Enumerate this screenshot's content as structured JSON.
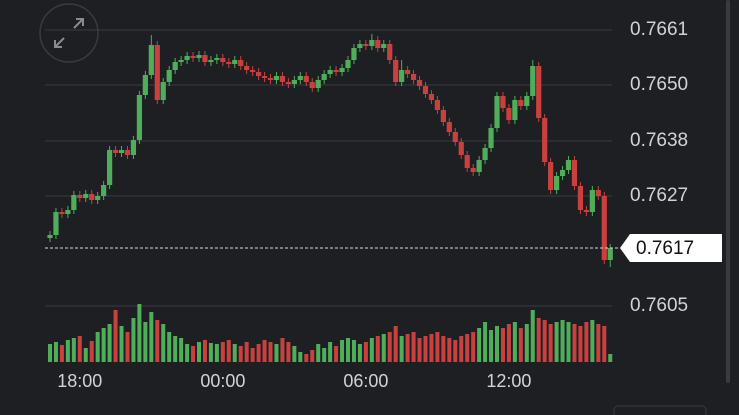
{
  "chart_data": {
    "type": "candlestick",
    "categories": [
      null,
      null,
      null,
      null,
      null,
      "18:00",
      null,
      null,
      null,
      null,
      null,
      null,
      null,
      null,
      null,
      null,
      null,
      null,
      null,
      null,
      null,
      null,
      null,
      null,
      null,
      null,
      null,
      null,
      null,
      "00:00",
      null,
      null,
      null,
      null,
      null,
      null,
      null,
      null,
      null,
      null,
      null,
      null,
      null,
      null,
      null,
      null,
      null,
      null,
      null,
      null,
      null,
      null,
      null,
      "06:00",
      null,
      null,
      null,
      null,
      null,
      null,
      null,
      null,
      null,
      null,
      null,
      null,
      null,
      null,
      null,
      null,
      null,
      null,
      null,
      null,
      null,
      null,
      null,
      "12:00",
      null,
      null,
      null,
      null,
      null,
      null,
      null,
      null,
      null,
      null,
      null,
      null,
      null,
      null,
      null,
      null,
      null
    ],
    "open": [
      0.7619,
      0.76196,
      0.76242,
      0.76238,
      0.76246,
      0.76276,
      0.7627,
      0.76278,
      0.76266,
      0.76274,
      0.76296,
      0.76366,
      0.7636,
      0.76366,
      0.76356,
      0.76386,
      0.76476,
      0.76516,
      0.76576,
      0.76466,
      0.76502,
      0.76526,
      0.76542,
      0.76546,
      0.76554,
      0.7655,
      0.76556,
      0.76542,
      0.76546,
      0.7655,
      0.76542,
      0.76538,
      0.76546,
      0.76534,
      0.76526,
      0.76522,
      0.76514,
      0.7651,
      0.76506,
      0.76514,
      0.76502,
      0.76498,
      0.76506,
      0.76514,
      0.76502,
      0.7649,
      0.76506,
      0.76518,
      0.76526,
      0.76522,
      0.7653,
      0.76546,
      0.7657,
      0.76578,
      0.76574,
      0.76586,
      0.7657,
      0.76578,
      0.76546,
      0.76502,
      0.76526,
      0.76518,
      0.76506,
      0.76494,
      0.76478,
      0.76466,
      0.76446,
      0.76422,
      0.76402,
      0.76382,
      0.76356,
      0.7633,
      0.76322,
      0.76346,
      0.7637,
      0.7641,
      0.76474,
      0.7645,
      0.76426,
      0.76466,
      0.76454,
      0.76474,
      0.76534,
      0.7643,
      0.76342,
      0.76286,
      0.76314,
      0.76326,
      0.76346,
      0.76294,
      0.76246,
      0.76242,
      0.76286,
      0.76274,
      0.76146
    ],
    "high": [
      0.76204,
      0.7625,
      0.7625,
      0.76254,
      0.76284,
      0.76284,
      0.76286,
      0.76286,
      0.76282,
      0.76304,
      0.76374,
      0.76374,
      0.76374,
      0.76374,
      0.76394,
      0.76484,
      0.76524,
      0.76596,
      0.76584,
      0.7651,
      0.76534,
      0.7655,
      0.76554,
      0.76562,
      0.76562,
      0.76564,
      0.76564,
      0.76554,
      0.76558,
      0.76558,
      0.7655,
      0.76554,
      0.76554,
      0.76542,
      0.76534,
      0.7653,
      0.76522,
      0.76518,
      0.76522,
      0.76522,
      0.7651,
      0.76514,
      0.76522,
      0.76522,
      0.7651,
      0.76514,
      0.76526,
      0.76534,
      0.76534,
      0.76538,
      0.76554,
      0.76578,
      0.76586,
      0.76586,
      0.76598,
      0.76594,
      0.76586,
      0.76586,
      0.76554,
      0.76546,
      0.76534,
      0.76526,
      0.76514,
      0.76502,
      0.76486,
      0.76474,
      0.76454,
      0.7643,
      0.7641,
      0.7639,
      0.76364,
      0.76338,
      0.76354,
      0.76378,
      0.76418,
      0.76482,
      0.76482,
      0.76458,
      0.76474,
      0.76474,
      0.76482,
      0.76546,
      0.76542,
      0.76438,
      0.7635,
      0.76322,
      0.76334,
      0.76354,
      0.76354,
      0.76302,
      0.76254,
      0.76294,
      0.76294,
      0.76282,
      0.76178
    ],
    "low": [
      0.76182,
      0.76188,
      0.7623,
      0.7623,
      0.76238,
      0.76262,
      0.76262,
      0.76258,
      0.76258,
      0.76266,
      0.76288,
      0.76352,
      0.76352,
      0.76348,
      0.76348,
      0.76378,
      0.76468,
      0.76508,
      0.76458,
      0.76458,
      0.76494,
      0.76518,
      0.76534,
      0.76538,
      0.76542,
      0.76542,
      0.76534,
      0.76534,
      0.76538,
      0.76534,
      0.7653,
      0.7653,
      0.76526,
      0.76518,
      0.76514,
      0.76506,
      0.76502,
      0.76498,
      0.76498,
      0.76494,
      0.7649,
      0.7649,
      0.76498,
      0.76494,
      0.76482,
      0.76482,
      0.76498,
      0.7651,
      0.76514,
      0.76514,
      0.76522,
      0.76538,
      0.76562,
      0.76566,
      0.76566,
      0.76562,
      0.76562,
      0.76538,
      0.76494,
      0.76494,
      0.7651,
      0.76498,
      0.76486,
      0.7647,
      0.76458,
      0.76438,
      0.76414,
      0.76394,
      0.76374,
      0.76348,
      0.76322,
      0.76314,
      0.76314,
      0.76338,
      0.76362,
      0.76402,
      0.76442,
      0.76418,
      0.76418,
      0.76446,
      0.76446,
      0.76466,
      0.76422,
      0.76334,
      0.76278,
      0.76278,
      0.76306,
      0.76318,
      0.76286,
      0.76238,
      0.76234,
      0.76234,
      0.76266,
      0.76138,
      0.76132
    ],
    "close": [
      0.76196,
      0.76242,
      0.76238,
      0.76246,
      0.76276,
      0.7627,
      0.76278,
      0.76266,
      0.76274,
      0.76296,
      0.76366,
      0.7636,
      0.76366,
      0.76356,
      0.76386,
      0.76476,
      0.76516,
      0.76576,
      0.76466,
      0.76502,
      0.76526,
      0.76542,
      0.76546,
      0.76554,
      0.7655,
      0.76556,
      0.76542,
      0.76546,
      0.7655,
      0.76542,
      0.76538,
      0.76546,
      0.76534,
      0.76526,
      0.76522,
      0.76514,
      0.7651,
      0.76506,
      0.76514,
      0.76502,
      0.76498,
      0.76506,
      0.76514,
      0.76502,
      0.7649,
      0.76506,
      0.76518,
      0.76526,
      0.76522,
      0.7653,
      0.76546,
      0.7657,
      0.76578,
      0.76574,
      0.76586,
      0.7657,
      0.76578,
      0.76546,
      0.76502,
      0.76526,
      0.76518,
      0.76506,
      0.76494,
      0.76478,
      0.76466,
      0.76446,
      0.76422,
      0.76402,
      0.76382,
      0.76356,
      0.7633,
      0.76322,
      0.76346,
      0.7637,
      0.7641,
      0.76474,
      0.7645,
      0.76426,
      0.76466,
      0.76454,
      0.76474,
      0.76534,
      0.7643,
      0.76342,
      0.76286,
      0.76314,
      0.76326,
      0.76346,
      0.76294,
      0.76246,
      0.76242,
      0.76286,
      0.76274,
      0.76146,
      0.7617
    ],
    "volume": [
      18,
      20,
      17,
      22,
      24,
      26,
      14,
      21,
      30,
      34,
      38,
      52,
      36,
      30,
      44,
      58,
      40,
      50,
      42,
      38,
      30,
      26,
      24,
      18,
      16,
      20,
      22,
      19,
      18,
      20,
      22,
      18,
      16,
      20,
      14,
      18,
      22,
      20,
      18,
      24,
      20,
      16,
      10,
      8,
      12,
      18,
      14,
      20,
      16,
      22,
      24,
      22,
      18,
      20,
      24,
      26,
      28,
      30,
      36,
      26,
      28,
      30,
      24,
      26,
      28,
      30,
      26,
      24,
      22,
      26,
      28,
      30,
      34,
      40,
      32,
      36,
      34,
      38,
      40,
      34,
      38,
      52,
      44,
      42,
      38,
      40,
      42,
      40,
      38,
      36,
      40,
      42,
      38,
      36,
      8
    ],
    "volume_lim": [
      0,
      60
    ],
    "ylim": [
      0.76036,
      0.76666
    ],
    "yticks": [
      {
        "value": 0.76606,
        "label": "0.7661"
      },
      {
        "value": 0.76496,
        "label": "0.7650"
      },
      {
        "value": 0.76384,
        "label": "0.7638"
      },
      {
        "value": 0.76274,
        "label": "0.7627"
      },
      {
        "value": 0.76054,
        "label": "0.7605"
      }
    ],
    "last_price": 0.7617,
    "up_color": "#4fae5a",
    "down_color": "#c8413f",
    "grid": true
  }
}
